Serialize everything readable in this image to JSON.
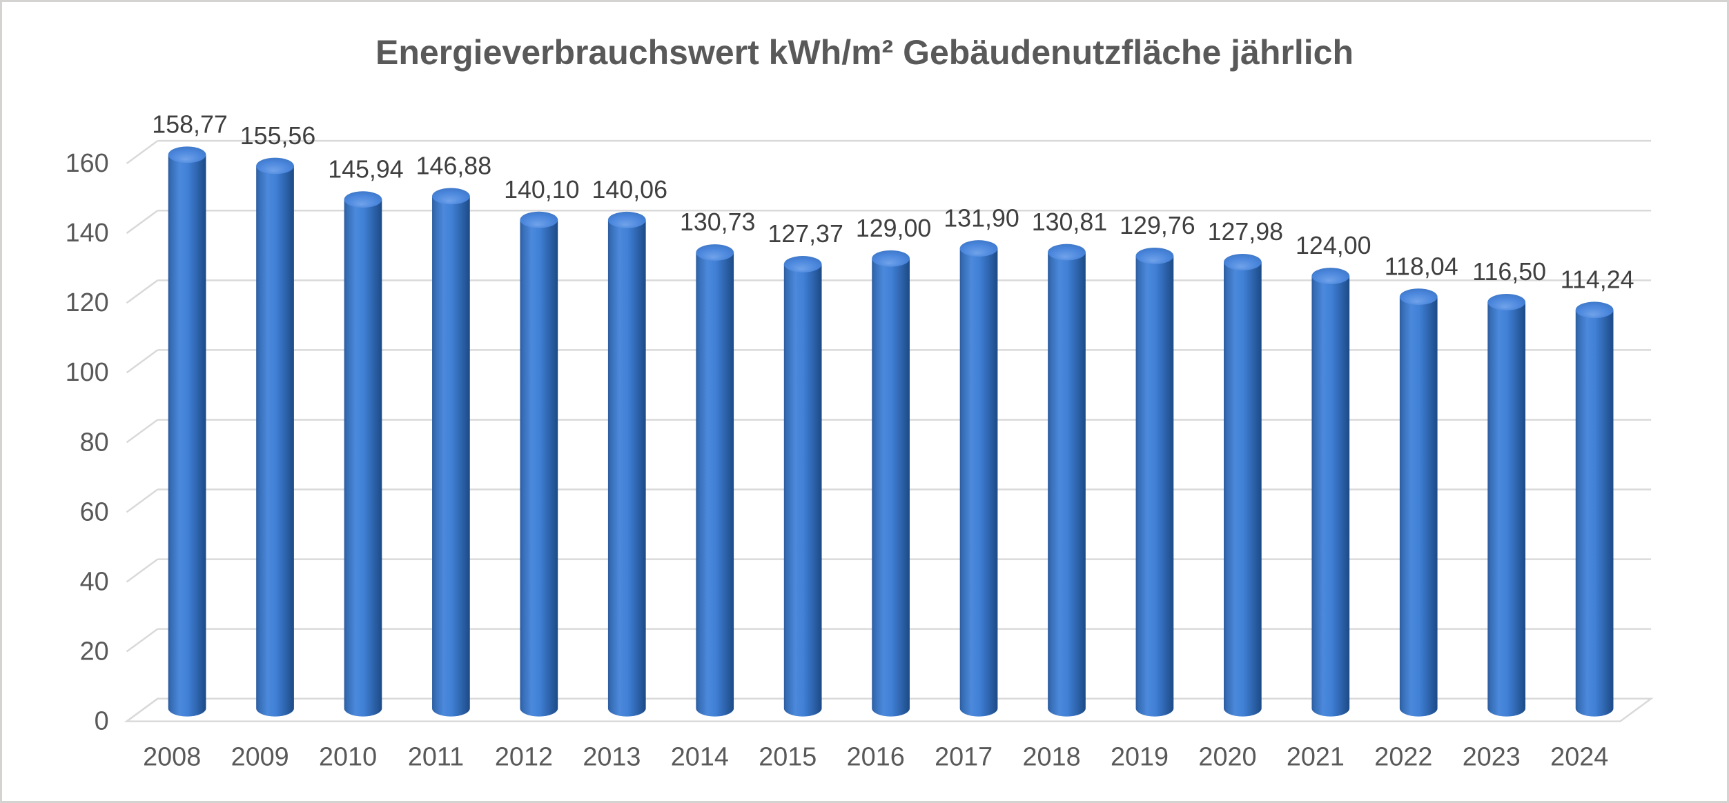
{
  "frame": {
    "background": "#ffffff",
    "border_color": "#d5d3d2"
  },
  "chart_data": {
    "type": "bar",
    "style": "3d-cylinder",
    "title": "Energieverbrauchswert kWh/m² Gebäudenutzfläche jährlich",
    "xlabel": "",
    "ylabel": "",
    "categories": [
      "2008",
      "2009",
      "2010",
      "2011",
      "2012",
      "2013",
      "2014",
      "2015",
      "2016",
      "2017",
      "2018",
      "2019",
      "2020",
      "2021",
      "2022",
      "2023",
      "2024"
    ],
    "values": [
      158.77,
      155.56,
      145.94,
      146.88,
      140.1,
      140.06,
      130.73,
      127.37,
      129.0,
      131.9,
      130.81,
      129.76,
      127.98,
      124.0,
      118.04,
      116.5,
      114.24
    ],
    "value_labels": [
      "158,77",
      "155,56",
      "145,94",
      "146,88",
      "140,10",
      "140,06",
      "130,73",
      "127,37",
      "129,00",
      "131,90",
      "130,81",
      "129,76",
      "127,98",
      "124,00",
      "118,04",
      "116,50",
      "114,24"
    ],
    "y_ticks": [
      0,
      20,
      40,
      60,
      80,
      100,
      120,
      140,
      160
    ],
    "ylim": [
      0,
      160
    ],
    "grid": true,
    "legend": "none",
    "gridline_color": "#d9d9d9",
    "floor_outline_color": "#d9d9d9",
    "text_colors": {
      "title": "#595959",
      "axis": "#595959",
      "data_label": "#3f3f3f"
    },
    "bar_colors": {
      "accent": "#4472c4",
      "body_gradient": [
        {
          "offset": 0,
          "color": "#2d5c9e"
        },
        {
          "offset": 0.07,
          "color": "#356cb4"
        },
        {
          "offset": 0.3,
          "color": "#4c89dc"
        },
        {
          "offset": 0.52,
          "color": "#4080d6"
        },
        {
          "offset": 0.78,
          "color": "#2d63ab"
        },
        {
          "offset": 1,
          "color": "#1c4a85"
        }
      ],
      "top_gradient": [
        {
          "offset": 0,
          "color": "#71a3ea"
        },
        {
          "offset": 0.45,
          "color": "#4a86dc"
        },
        {
          "offset": 1,
          "color": "#2d63ac"
        }
      ]
    }
  }
}
